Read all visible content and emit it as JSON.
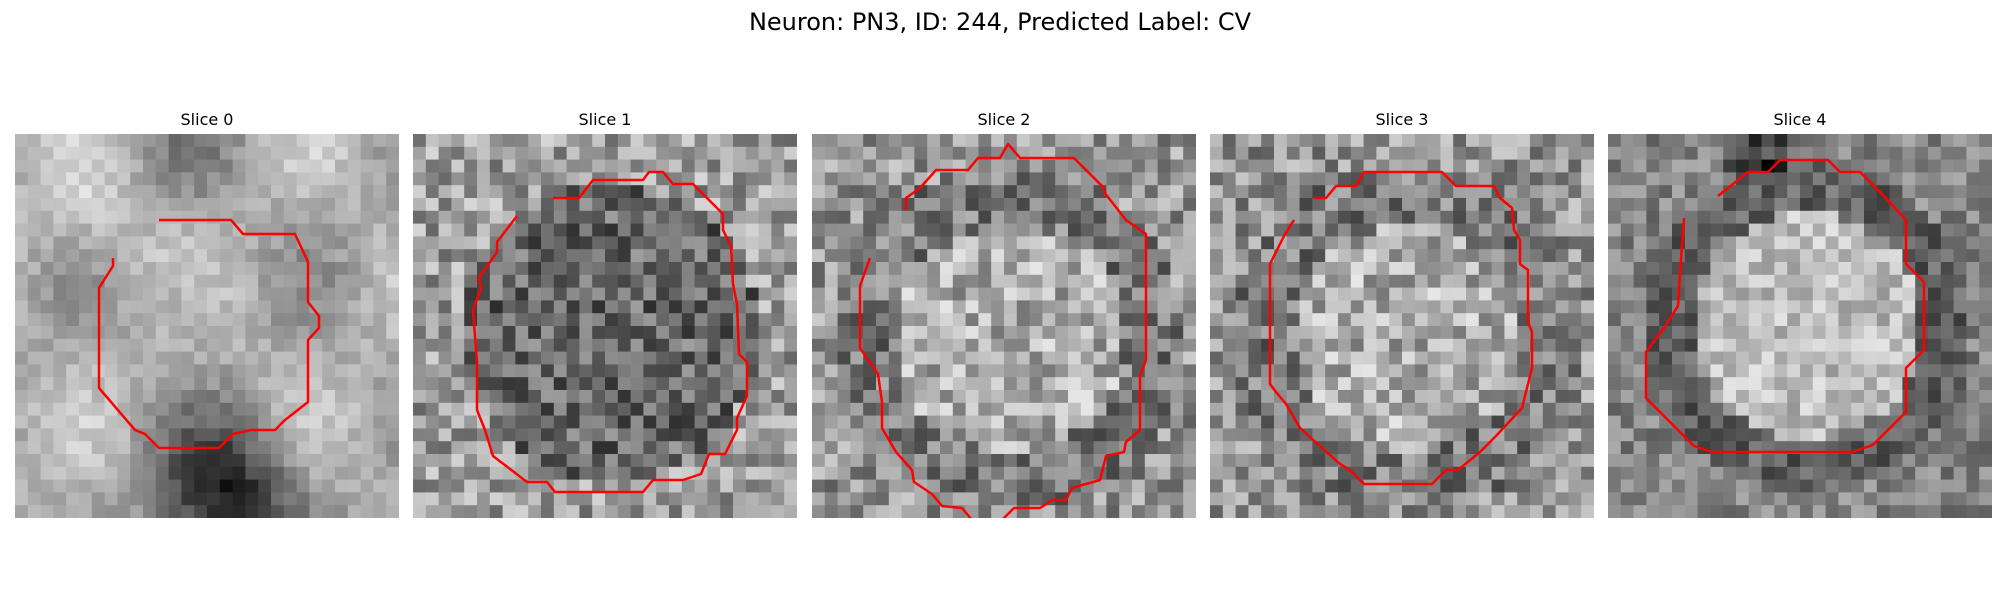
{
  "figure": {
    "suptitle": "Neuron: PN3, ID: 244, Predicted Label: CV",
    "panels": [
      {
        "title": "Slice 0",
        "kind": "blob"
      },
      {
        "title": "Slice 1",
        "kind": "dark"
      },
      {
        "title": "Slice 2",
        "kind": "light"
      },
      {
        "title": "Slice 3",
        "kind": "light"
      },
      {
        "title": "Slice 4",
        "kind": "ring"
      }
    ],
    "colors": {
      "contour": "#ff0000",
      "background": "#ffffff"
    },
    "colormap": "gray"
  }
}
